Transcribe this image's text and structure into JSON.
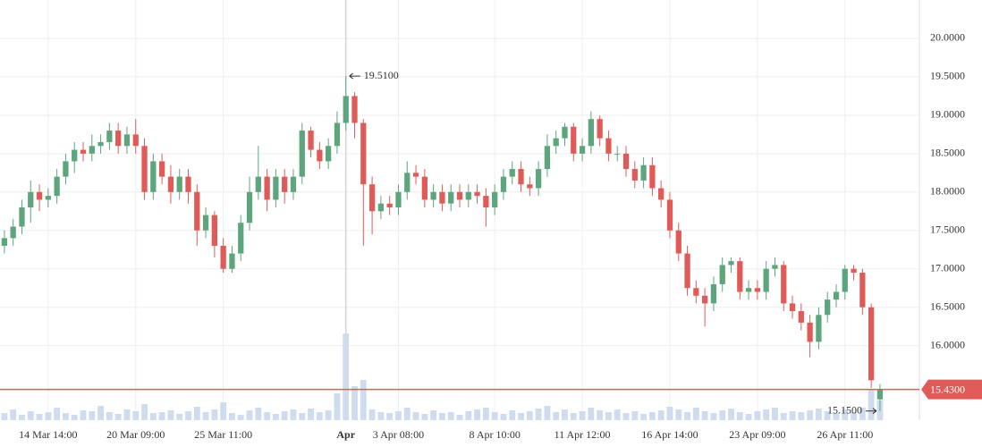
{
  "chart_data": {
    "type": "candlestick",
    "categories": [
      null,
      null,
      null,
      null,
      null,
      "14 Mar 14:00",
      null,
      null,
      null,
      null,
      null,
      null,
      null,
      null,
      null,
      "20 Mar 09:00",
      null,
      null,
      null,
      null,
      null,
      null,
      null,
      null,
      null,
      "25 Mar 11:00",
      null,
      null,
      null,
      null,
      null,
      null,
      null,
      null,
      null,
      null,
      null,
      null,
      null,
      "Apr",
      null,
      null,
      null,
      null,
      null,
      "3 Apr 08:00",
      null,
      null,
      null,
      null,
      null,
      null,
      null,
      null,
      null,
      null,
      "8 Apr 10:00",
      null,
      null,
      null,
      null,
      null,
      null,
      null,
      null,
      null,
      "11 Apr 12:00",
      null,
      null,
      null,
      null,
      null,
      null,
      null,
      null,
      null,
      "16 Apr 14:00",
      null,
      null,
      null,
      null,
      null,
      null,
      null,
      null,
      null,
      "23 Apr 09:00",
      null,
      null,
      null,
      null,
      null,
      null,
      null,
      null,
      null,
      "26 Apr 11:00",
      null,
      null,
      null,
      null
    ],
    "open": [
      17.3,
      17.4,
      17.55,
      17.8,
      18.0,
      17.9,
      17.95,
      18.2,
      18.4,
      18.55,
      18.5,
      18.6,
      18.65,
      18.8,
      18.6,
      18.75,
      18.6,
      18.0,
      18.4,
      18.2,
      18.0,
      18.2,
      18.0,
      17.5,
      17.7,
      17.3,
      17.0,
      17.2,
      17.6,
      18.0,
      18.2,
      17.9,
      18.2,
      18.0,
      18.2,
      18.8,
      18.55,
      18.4,
      18.6,
      18.9,
      19.25,
      18.9,
      18.1,
      17.75,
      17.85,
      17.8,
      18.0,
      18.25,
      18.2,
      17.9,
      18.0,
      17.85,
      18.0,
      17.9,
      18.0,
      17.95,
      17.8,
      18.0,
      18.2,
      18.3,
      18.1,
      18.05,
      18.3,
      18.6,
      18.7,
      18.85,
      18.5,
      18.6,
      18.95,
      18.7,
      18.5,
      18.5,
      18.3,
      18.15,
      18.35,
      18.05,
      17.9,
      17.5,
      17.2,
      16.75,
      16.65,
      16.55,
      16.8,
      17.05,
      17.1,
      16.7,
      16.75,
      16.7,
      17.0,
      17.05,
      16.55,
      16.45,
      16.3,
      16.05,
      16.4,
      16.6,
      16.7,
      17.0,
      16.95,
      16.5,
      15.3
    ],
    "high": [
      17.5,
      17.65,
      17.9,
      18.15,
      18.1,
      18.05,
      18.3,
      18.5,
      18.65,
      18.65,
      18.75,
      18.75,
      18.9,
      18.9,
      18.85,
      18.95,
      18.7,
      18.5,
      18.5,
      18.35,
      18.3,
      18.3,
      18.1,
      17.8,
      17.75,
      17.4,
      17.3,
      17.7,
      18.2,
      18.6,
      18.3,
      18.3,
      18.3,
      18.3,
      18.9,
      18.85,
      18.65,
      18.7,
      19.05,
      19.51,
      19.3,
      18.95,
      18.2,
      17.95,
      17.95,
      18.1,
      18.4,
      18.35,
      18.3,
      18.1,
      18.1,
      18.1,
      18.1,
      18.1,
      18.1,
      18.05,
      18.1,
      18.3,
      18.4,
      18.4,
      18.2,
      18.4,
      18.75,
      18.8,
      18.9,
      18.9,
      18.7,
      19.05,
      19.0,
      18.8,
      18.6,
      18.6,
      18.4,
      18.45,
      18.45,
      18.15,
      18.0,
      17.6,
      17.3,
      16.85,
      16.75,
      16.9,
      17.15,
      17.15,
      17.15,
      16.85,
      16.85,
      17.1,
      17.15,
      17.1,
      16.65,
      16.55,
      16.4,
      16.5,
      16.7,
      16.8,
      17.05,
      17.05,
      17.0,
      16.55,
      15.5
    ],
    "low": [
      17.2,
      17.3,
      17.45,
      17.6,
      17.75,
      17.8,
      17.85,
      18.1,
      18.25,
      18.4,
      18.4,
      18.5,
      18.55,
      18.5,
      18.5,
      18.5,
      17.9,
      17.9,
      18.1,
      17.85,
      17.9,
      17.85,
      17.3,
      17.4,
      17.15,
      16.95,
      16.95,
      17.1,
      17.5,
      17.9,
      17.75,
      17.8,
      17.85,
      17.9,
      18.1,
      18.45,
      18.3,
      18.3,
      18.5,
      18.8,
      18.7,
      17.3,
      17.45,
      17.65,
      17.7,
      17.7,
      17.9,
      18.1,
      17.8,
      17.8,
      17.75,
      17.75,
      17.8,
      17.8,
      17.85,
      17.55,
      17.7,
      17.9,
      18.1,
      18.0,
      17.95,
      17.95,
      18.2,
      18.5,
      18.6,
      18.4,
      18.4,
      18.5,
      18.6,
      18.4,
      18.4,
      18.2,
      18.05,
      18.05,
      17.95,
      17.8,
      17.4,
      17.1,
      16.65,
      16.55,
      16.25,
      16.45,
      16.7,
      16.95,
      16.6,
      16.6,
      16.6,
      16.6,
      16.9,
      16.45,
      16.35,
      16.2,
      15.85,
      15.95,
      16.3,
      16.5,
      16.6,
      16.85,
      16.4,
      15.45,
      15.15
    ],
    "close": [
      17.4,
      17.55,
      17.8,
      18.0,
      17.9,
      17.95,
      18.2,
      18.4,
      18.55,
      18.5,
      18.6,
      18.65,
      18.8,
      18.6,
      18.75,
      18.6,
      18.0,
      18.4,
      18.2,
      18.0,
      18.2,
      18.0,
      17.5,
      17.7,
      17.3,
      17.0,
      17.2,
      17.6,
      18.0,
      18.2,
      17.9,
      18.2,
      18.0,
      18.2,
      18.8,
      18.55,
      18.4,
      18.6,
      18.9,
      19.25,
      18.9,
      18.1,
      17.75,
      17.85,
      17.8,
      18.0,
      18.25,
      18.2,
      17.9,
      18.0,
      17.85,
      18.0,
      17.9,
      18.0,
      17.95,
      17.8,
      18.0,
      18.2,
      18.3,
      18.1,
      18.05,
      18.3,
      18.6,
      18.7,
      18.85,
      18.5,
      18.6,
      18.95,
      18.7,
      18.5,
      18.5,
      18.3,
      18.15,
      18.35,
      18.05,
      17.9,
      17.5,
      17.2,
      16.75,
      16.65,
      16.55,
      16.8,
      17.05,
      17.1,
      16.7,
      16.75,
      16.7,
      17.0,
      17.05,
      16.55,
      16.45,
      16.3,
      16.05,
      16.4,
      16.6,
      16.7,
      17.0,
      16.95,
      16.5,
      15.55,
      15.43
    ],
    "volume": [
      8,
      12,
      6,
      10,
      7,
      9,
      14,
      8,
      6,
      11,
      10,
      16,
      9,
      7,
      12,
      10,
      18,
      8,
      9,
      11,
      7,
      10,
      15,
      9,
      12,
      20,
      8,
      6,
      11,
      14,
      9,
      7,
      10,
      12,
      8,
      13,
      9,
      11,
      30,
      97,
      38,
      45,
      12,
      9,
      8,
      10,
      14,
      9,
      7,
      11,
      8,
      9,
      6,
      10,
      12,
      14,
      9,
      7,
      11,
      8,
      10,
      13,
      16,
      9,
      12,
      8,
      10,
      14,
      11,
      9,
      12,
      8,
      10,
      7,
      9,
      11,
      15,
      12,
      9,
      14,
      10,
      8,
      11,
      13,
      9,
      7,
      10,
      12,
      14,
      8,
      10,
      9,
      11,
      13,
      10,
      8,
      12,
      9,
      14,
      35,
      22
    ],
    "volume_lim": [
      0,
      100
    ],
    "up_color": "#5da57d",
    "down_color": "#e05b58",
    "volume_color": "#cfdcee",
    "ylim": [
      15.03,
      20.5
    ],
    "yticks": [
      {
        "value": 16,
        "label": "16.0000"
      },
      {
        "value": 16.5,
        "label": "16.5000"
      },
      {
        "value": 17,
        "label": "17.0000"
      },
      {
        "value": 17.5,
        "label": "17.5000"
      },
      {
        "value": 18,
        "label": "18.0000"
      },
      {
        "value": 18.5,
        "label": "18.5000"
      },
      {
        "value": 19,
        "label": "19.0000"
      },
      {
        "value": 19.5,
        "label": "19.5000"
      },
      {
        "value": 20,
        "label": "20.0000"
      }
    ],
    "grid": true,
    "max_label": {
      "value": 19.51,
      "label": "19.5100"
    },
    "min_label": {
      "value": 15.15,
      "label": "15.1500"
    },
    "last_price": {
      "value": 15.43,
      "label": "15.4300"
    }
  }
}
